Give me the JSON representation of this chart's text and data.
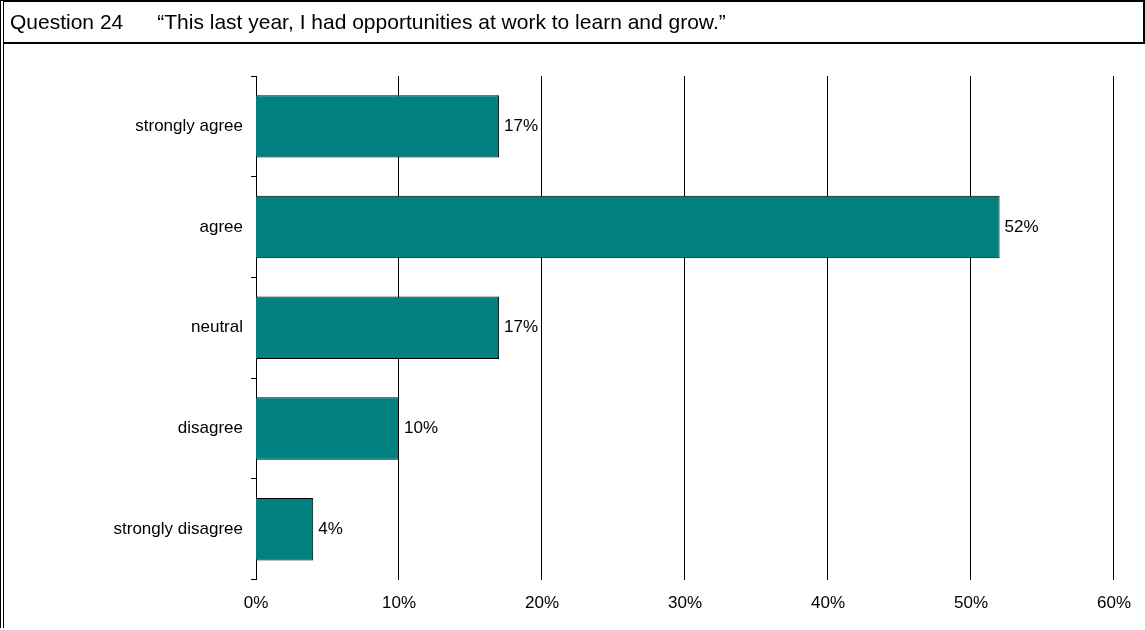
{
  "chart_data": {
    "type": "bar",
    "orientation": "horizontal",
    "title": "Question 24",
    "subtitle": "“This last year, I had opportunities at work to learn and grow.”",
    "categories": [
      "strongly agree",
      "agree",
      "neutral",
      "disagree",
      "strongly disagree"
    ],
    "values": [
      17,
      52,
      17,
      10,
      4
    ],
    "color": "#008080",
    "data_labels": true,
    "value_labels": [
      "17%",
      "52%",
      "17%",
      "10%",
      "4%"
    ],
    "xlim": [
      0,
      60
    ],
    "xticks": [
      {
        "value": 0,
        "label": "0%"
      },
      {
        "value": 10,
        "label": "10%"
      },
      {
        "value": 20,
        "label": "20%"
      },
      {
        "value": 30,
        "label": "30%"
      },
      {
        "value": 40,
        "label": "40%"
      },
      {
        "value": 50,
        "label": "50%"
      },
      {
        "value": 60,
        "label": "60%"
      }
    ],
    "grid": "x",
    "legend": false
  }
}
